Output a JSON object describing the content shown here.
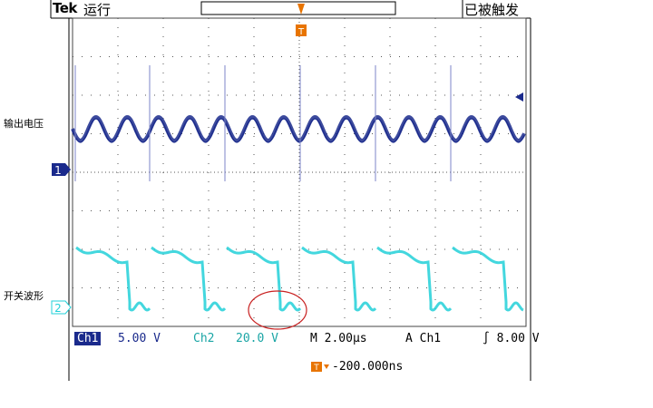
{
  "header": {
    "brand": "Tek",
    "run_state": "运行",
    "trigger_state": "已被触发"
  },
  "side_labels": {
    "ch1_label": "输出电压",
    "ch2_label": "开关波形"
  },
  "markers": {
    "ch1_marker": "1",
    "ch2_marker": "2",
    "trigger_marker": "T"
  },
  "status_bar": {
    "ch1_label": "Ch1",
    "ch1_scale": "5.00 V",
    "ch2_label": "Ch2",
    "ch2_scale": "20.0 V",
    "timebase": "M 2.00µs",
    "trigger_mode": "A",
    "trigger_source": "Ch1",
    "trigger_slope": "∫",
    "trigger_level": "8.00 V",
    "horizontal_position": "-200.000ns"
  },
  "colors": {
    "ch1": "#1a2a8c",
    "ch2": "#22d0d8",
    "trigger": "#e87400",
    "highlight_circle": "#c82020",
    "grid": "#555555"
  }
}
